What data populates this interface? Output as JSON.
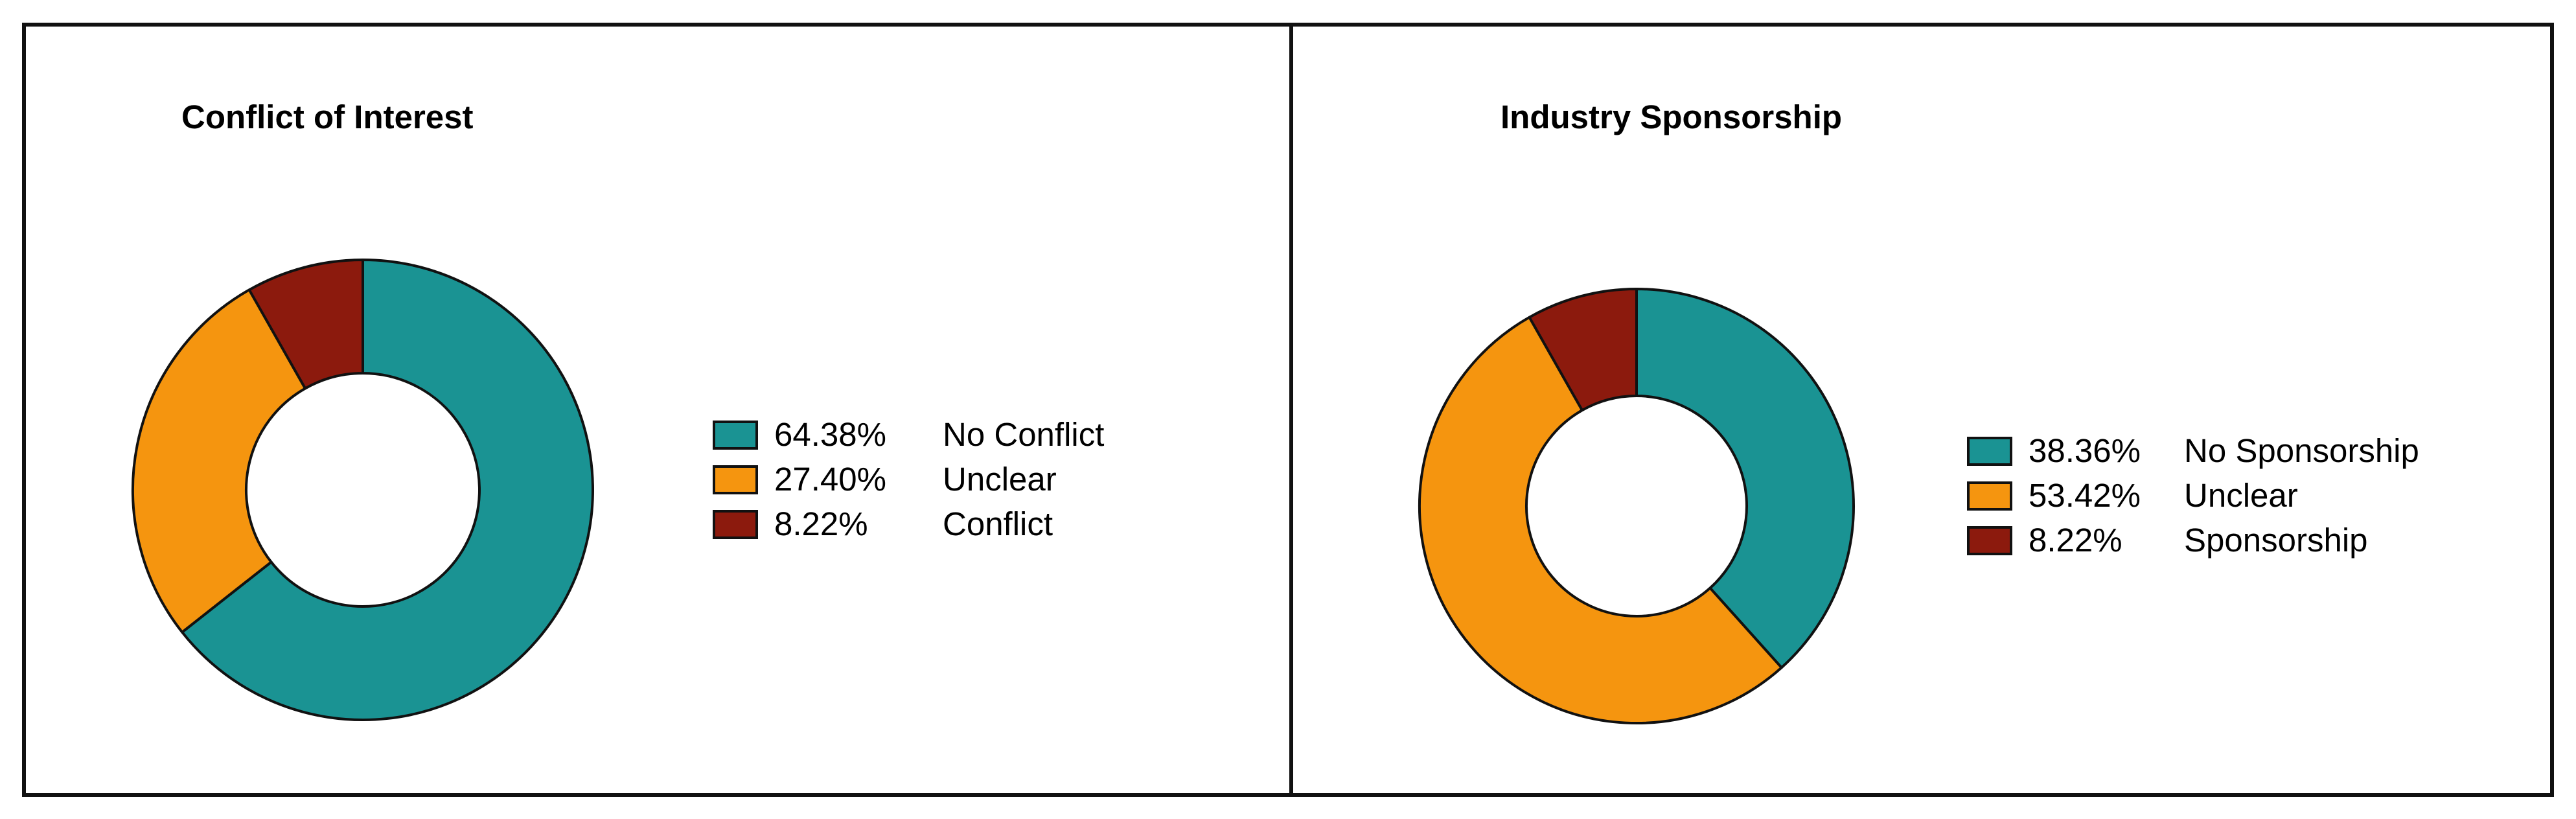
{
  "colors": {
    "teal": "#1a9393",
    "orange": "#f5950f",
    "darkred": "#8c1a0d",
    "border": "#111111",
    "background": "#ffffff"
  },
  "chart_data": [
    {
      "type": "pie",
      "subtype": "donut",
      "title": "Conflict of Interest",
      "slices": [
        {
          "label": "No Conflict",
          "value": 64.38,
          "value_label": "64.38%",
          "color": "#1a9393"
        },
        {
          "label": "Unclear",
          "value": 27.4,
          "value_label": "27.40%",
          "color": "#f5950f"
        },
        {
          "label": "Conflict",
          "value": 8.22,
          "value_label": "8.22%",
          "color": "#8c1a0d"
        }
      ],
      "start_angle_deg": 0,
      "direction": "clockwise",
      "legend_placement": "right"
    },
    {
      "type": "pie",
      "subtype": "donut",
      "title": "Industry Sponsorship",
      "slices": [
        {
          "label": "No Sponsorship",
          "value": 38.36,
          "value_label": "38.36%",
          "color": "#1a9393"
        },
        {
          "label": "Unclear",
          "value": 53.42,
          "value_label": "53.42%",
          "color": "#f5950f"
        },
        {
          "label": "Sponsorship",
          "value": 8.22,
          "value_label": "8.22%",
          "color": "#8c1a0d"
        }
      ],
      "start_angle_deg": 0,
      "direction": "clockwise",
      "legend_placement": "right"
    }
  ]
}
